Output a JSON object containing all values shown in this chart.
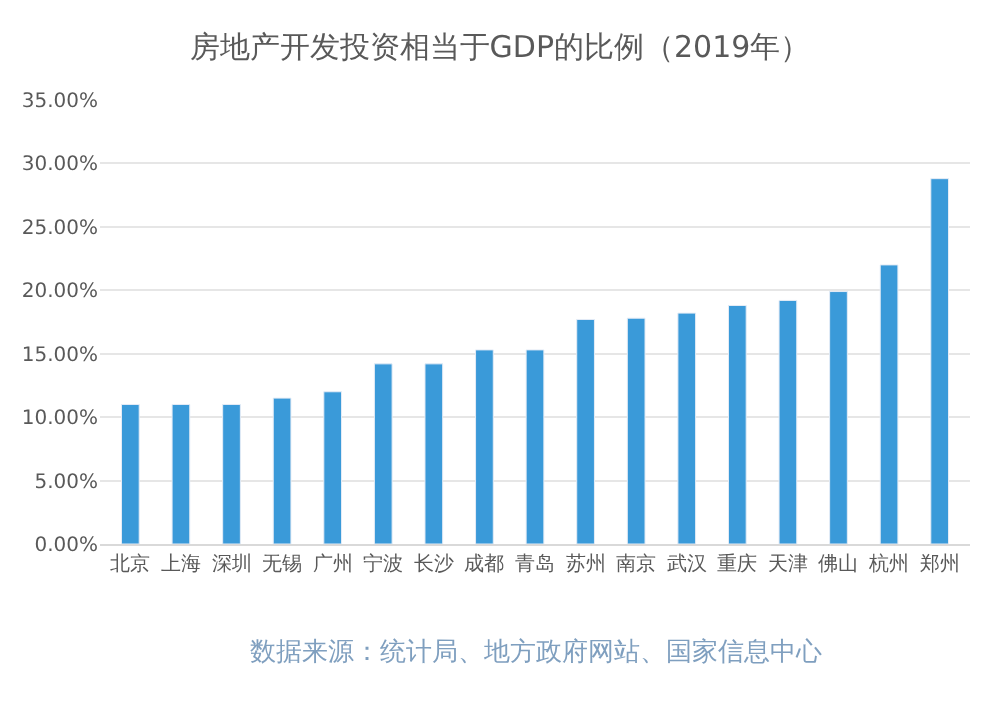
{
  "chart_data": {
    "type": "bar",
    "title": "房地产开发投资相当于GDP的比例（2019年）",
    "categories": [
      "北京",
      "上海",
      "深圳",
      "无锡",
      "广州",
      "宁波",
      "长沙",
      "成都",
      "青岛",
      "苏州",
      "南京",
      "武汉",
      "重庆",
      "天津",
      "佛山",
      "杭州",
      "郑州"
    ],
    "values": [
      11,
      11,
      11,
      11.5,
      12,
      14.2,
      14.2,
      15.3,
      15.3,
      17.7,
      17.8,
      18.2,
      18.8,
      19.2,
      19.9,
      22.0,
      28.8
    ],
    "color": "#3a9ad9",
    "ylim": [
      0,
      35
    ],
    "yticks": [
      {
        "value": 0,
        "label": "0.00%"
      },
      {
        "value": 5,
        "label": "5.00%"
      },
      {
        "value": 10,
        "label": "10.00%"
      },
      {
        "value": 15,
        "label": "15.00%"
      },
      {
        "value": 20,
        "label": "20.00%"
      },
      {
        "value": 25,
        "label": "25.00%"
      },
      {
        "value": 30,
        "label": "30.00%"
      },
      {
        "value": 35,
        "label": "35.00%"
      }
    ],
    "grid": "y",
    "legend": false,
    "annotations": [
      "数据来源：统计局、地方政府网站、国家信息中心"
    ]
  }
}
